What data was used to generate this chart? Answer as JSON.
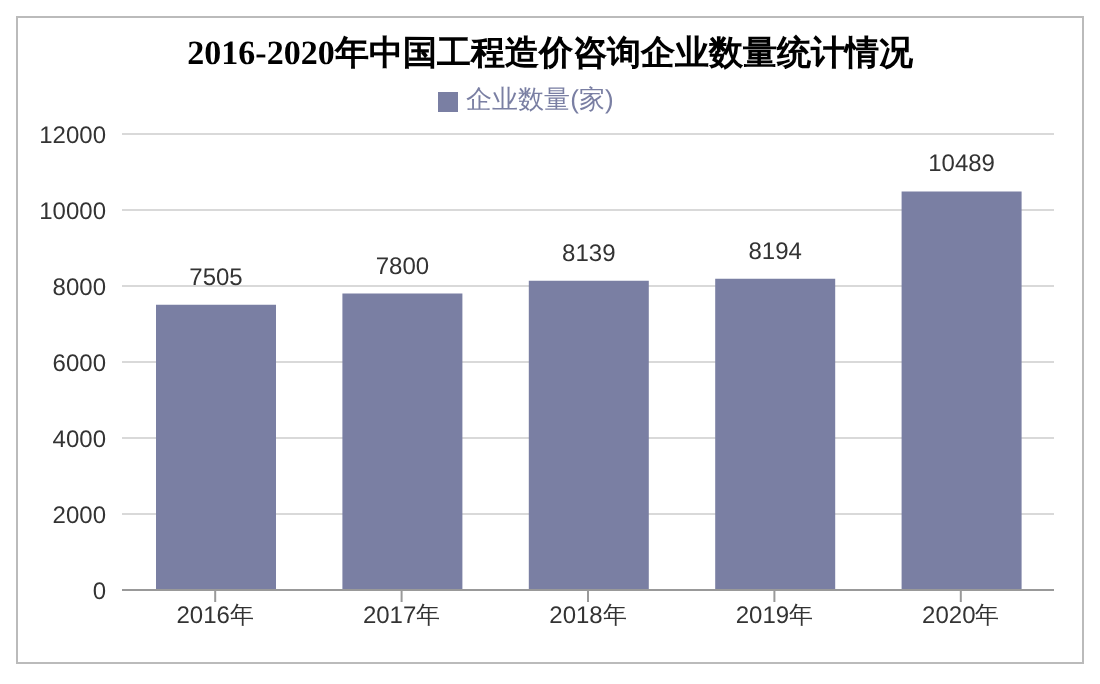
{
  "chart_data": {
    "type": "bar",
    "title": "2016-2020年中国工程造价咨询企业数量统计情况",
    "categories": [
      "2016年",
      "2017年",
      "2018年",
      "2019年",
      "2020年"
    ],
    "series": [
      {
        "name": "企业数量(家)",
        "color": "#7a7fa3",
        "values": [
          7505,
          7800,
          8139,
          8194,
          10489
        ]
      }
    ],
    "ylim": [
      0,
      12000
    ],
    "yticks": [
      0,
      2000,
      4000,
      6000,
      8000,
      10000,
      12000
    ],
    "grid": "y",
    "legend": "top",
    "data_labels": true
  }
}
